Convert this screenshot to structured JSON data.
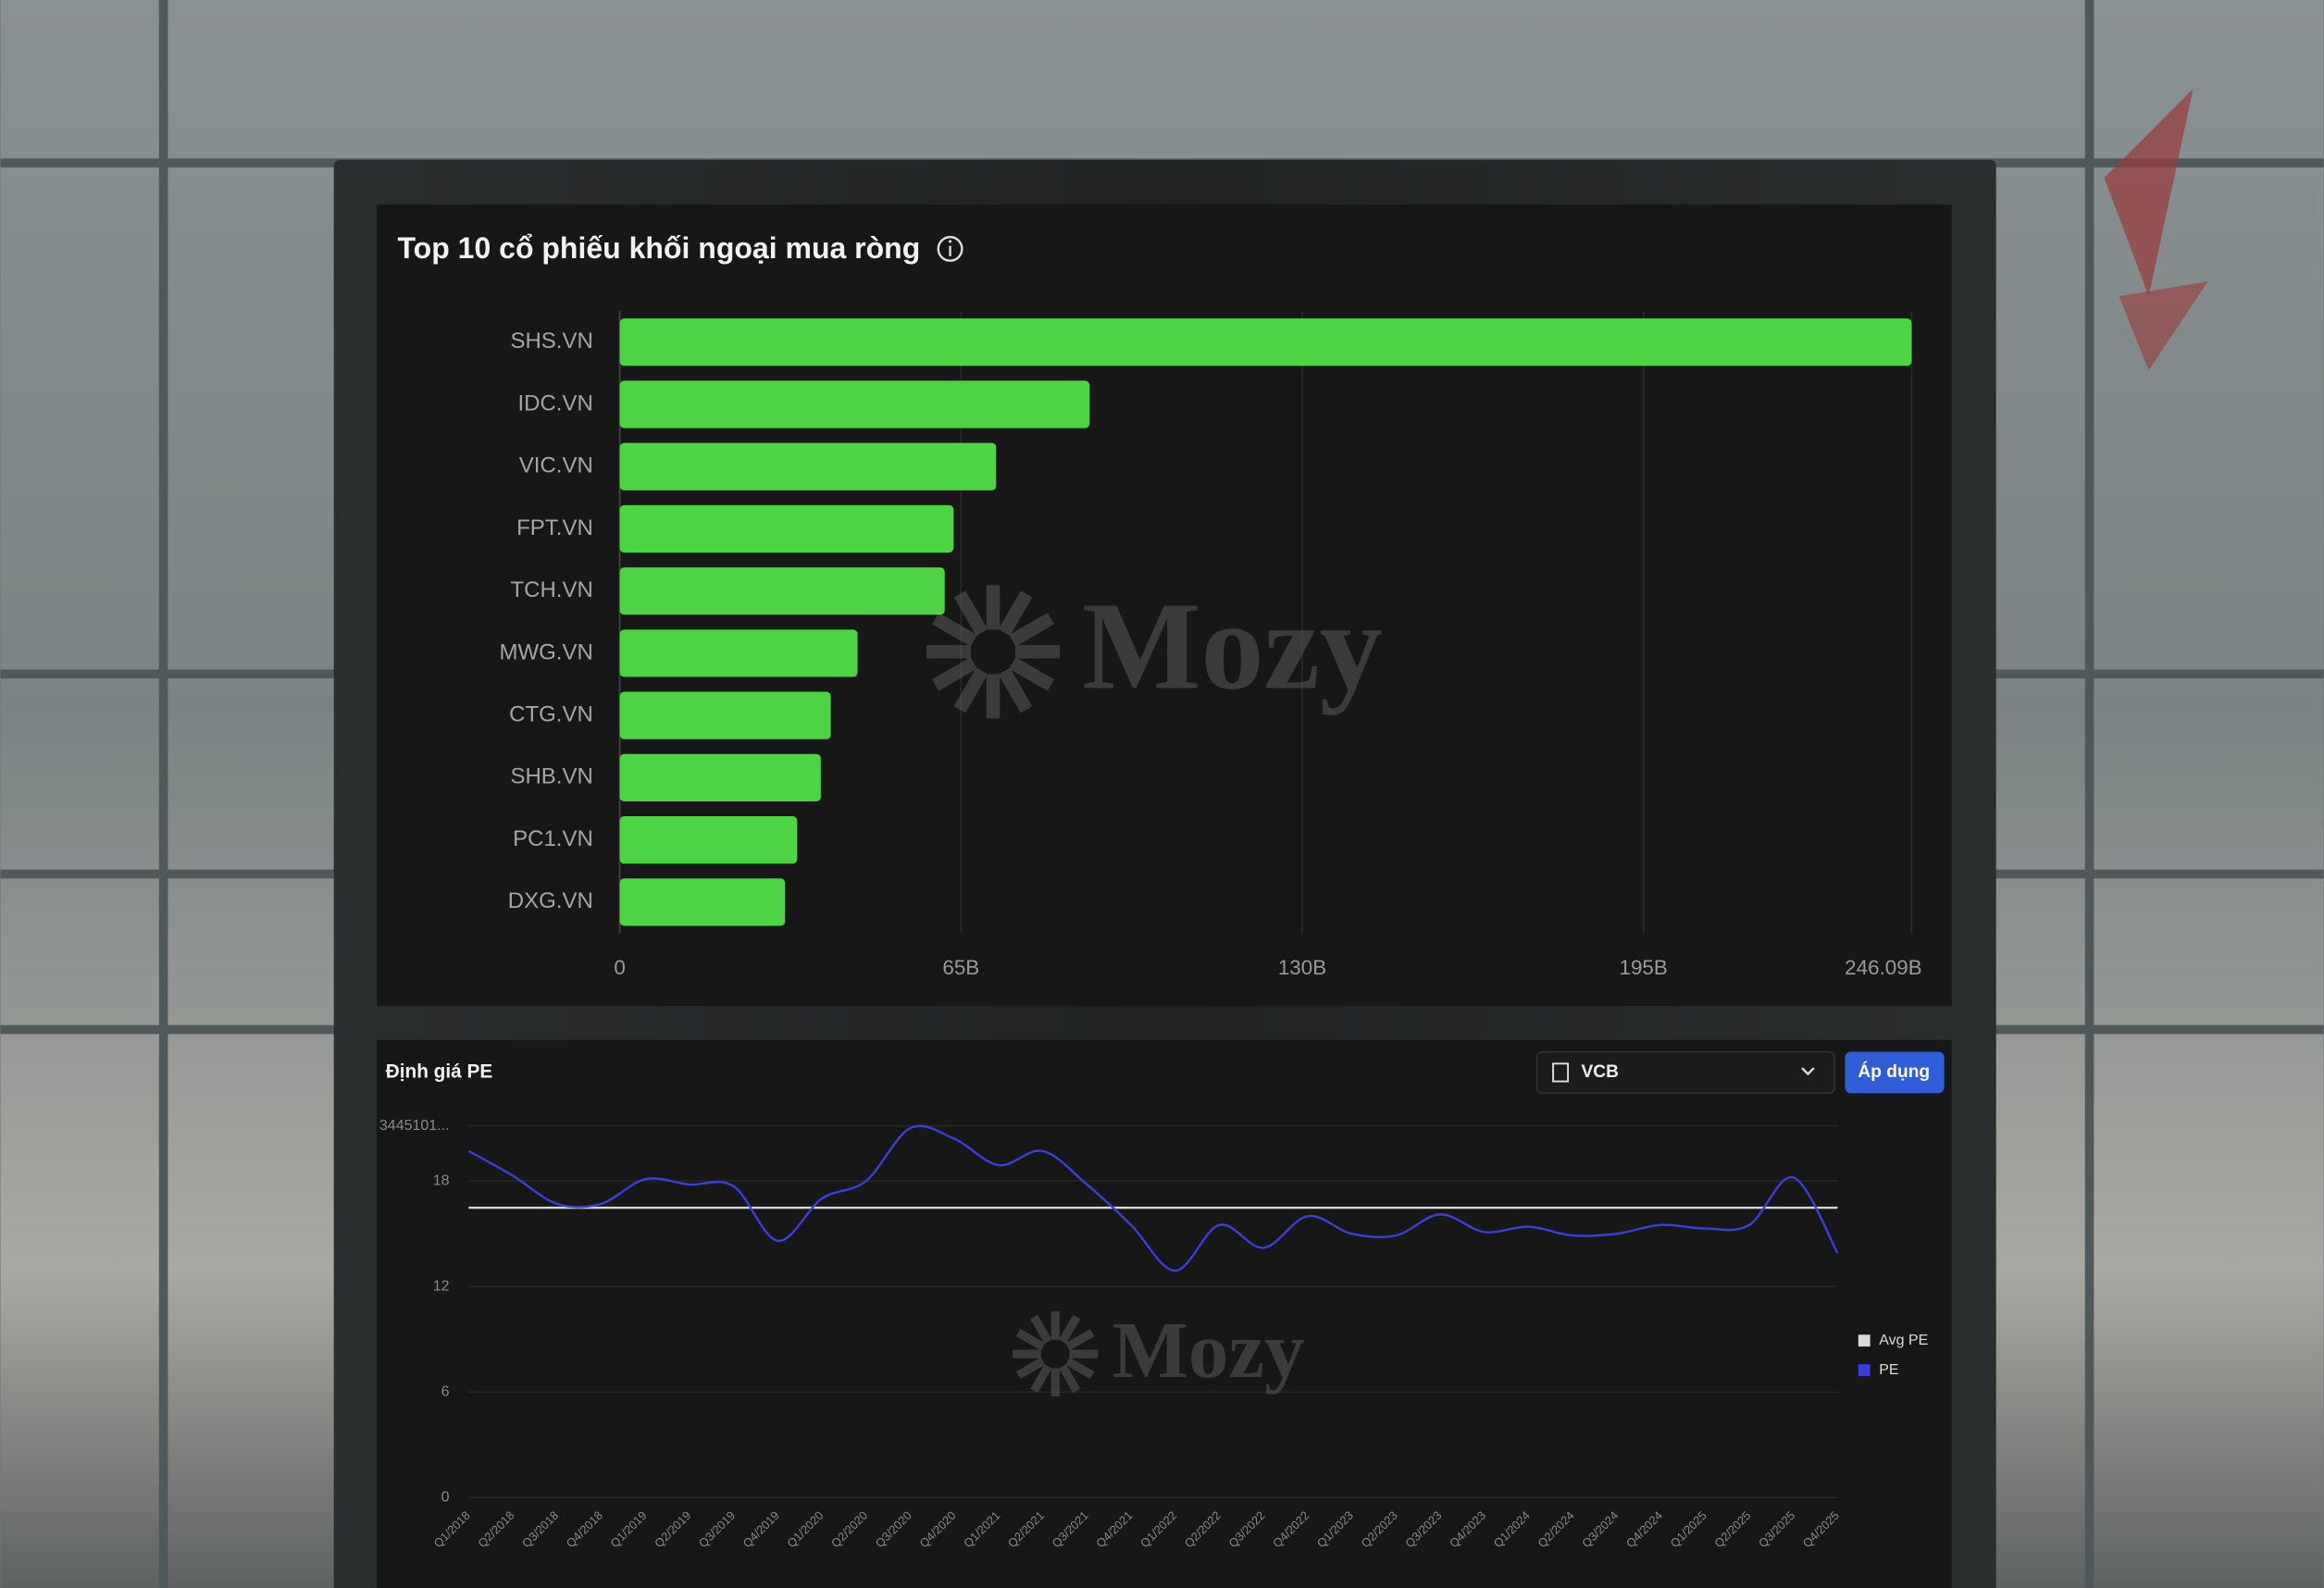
{
  "watermark": "Mozy",
  "controls": {
    "select": "VCB",
    "button": "Áp dụng"
  },
  "chart_data": [
    {
      "type": "hbar",
      "title": "Top 10 cổ phiếu khối ngoại mua ròng",
      "categories": [
        "SHS.VN",
        "IDC.VN",
        "VIC.VN",
        "FPT.VN",
        "TCH.VN",
        "MWG.VN",
        "CTG.VN",
        "SHB.VN",
        "PC1.VN",
        "DXG.VN"
      ],
      "values": [
        246.09,
        89.5,
        71.7,
        63.6,
        61.9,
        45.3,
        40.2,
        38.3,
        33.8,
        31.5
      ],
      "color": "#4cd445",
      "xlim": [
        0,
        246.09
      ],
      "xticks": [
        0,
        {
          "value": 65,
          "label": "65B"
        },
        {
          "value": 130,
          "label": "130B"
        },
        {
          "value": 195,
          "label": "195B"
        },
        {
          "value": 246.09,
          "label": "246.09B"
        }
      ],
      "grid": true
    },
    {
      "type": "line",
      "title": "Định giá PE",
      "x": [
        "Q1/2018",
        "Q2/2018",
        "Q3/2018",
        "Q4/2018",
        "Q1/2019",
        "Q2/2019",
        "Q3/2019",
        "Q4/2019",
        "Q1/2020",
        "Q2/2020",
        "Q3/2020",
        "Q4/2020",
        "Q1/2021",
        "Q2/2021",
        "Q3/2021",
        "Q4/2021",
        "Q1/2022",
        "Q2/2022",
        "Q3/2022",
        "Q4/2022",
        "Q1/2023",
        "Q2/2023",
        "Q3/2023",
        "Q4/2023",
        "Q1/2024",
        "Q2/2024",
        "Q3/2024",
        "Q4/2024",
        "Q1/2025",
        "Q2/2025",
        "Q3/2025",
        "Q4/2025"
      ],
      "series": [
        {
          "name": "Avg PE",
          "color": "#d9d9d9",
          "values": [
            16.48,
            16.48,
            16.48,
            16.48,
            16.48,
            16.48,
            16.48,
            16.48,
            16.48,
            16.48,
            16.48,
            16.48,
            16.48,
            16.48,
            16.48,
            16.48,
            16.48,
            16.48,
            16.48,
            16.48,
            16.48,
            16.48,
            16.48,
            16.48,
            16.48,
            16.48,
            16.48,
            16.48,
            16.48,
            16.48,
            16.48,
            16.48
          ]
        },
        {
          "name": "PE",
          "color": "#3b3fd9",
          "values": [
            19.7,
            18.3,
            16.7,
            16.7,
            18.1,
            17.8,
            17.7,
            14.6,
            17.0,
            18.0,
            21.0,
            20.4,
            18.9,
            19.7,
            17.8,
            15.5,
            12.9,
            15.5,
            14.2,
            16.0,
            15.0,
            14.9,
            16.1,
            15.1,
            15.4,
            14.9,
            15.0,
            15.5,
            15.3,
            15.5,
            18.2,
            13.9
          ]
        }
      ],
      "ylim": [
        0,
        21.13445101
      ],
      "yticks": [
        0,
        6,
        12,
        18,
        {
          "value": 21.13445101,
          "label": "3445101..."
        }
      ],
      "grid": true,
      "legend": "right"
    }
  ]
}
